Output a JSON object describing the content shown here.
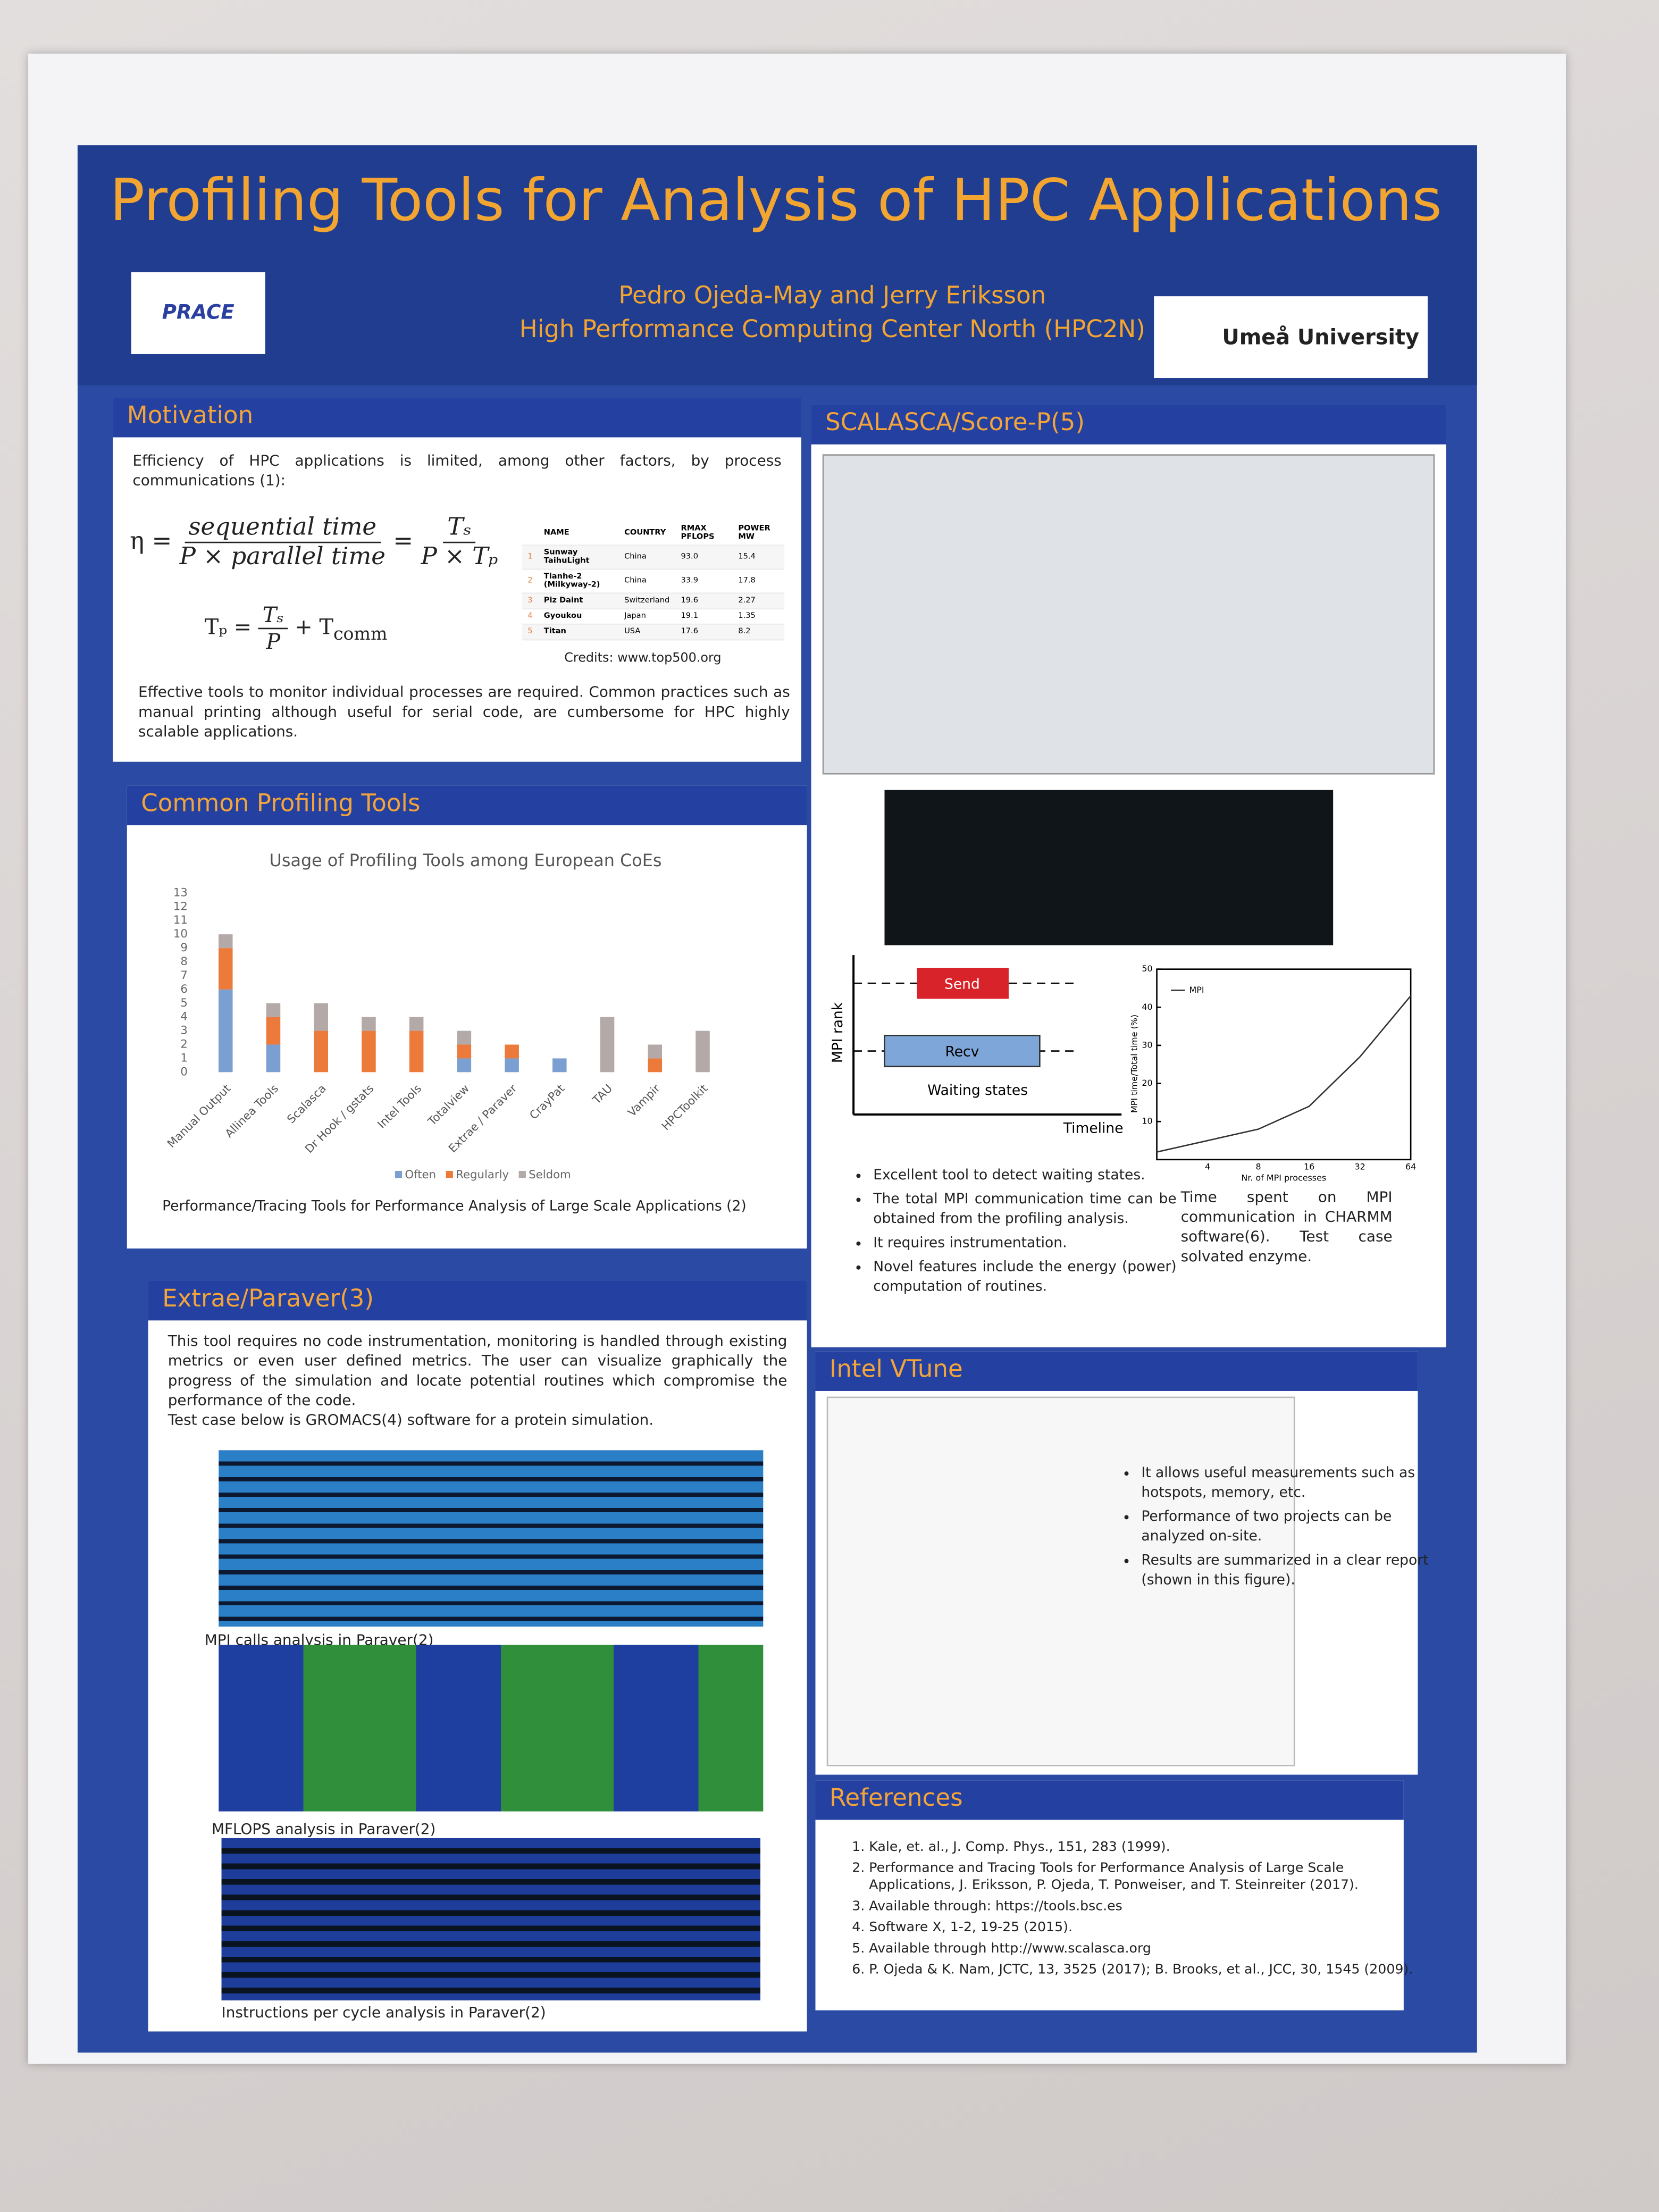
{
  "header": {
    "title": "Profiling Tools for Analysis of HPC Applications",
    "authors": "Pedro Ojeda-May and Jerry Eriksson",
    "affiliation": "High Performance Computing Center North (HPC2N)",
    "logo_left": "PRACE",
    "logo_right": "Umeå University"
  },
  "motivation": {
    "heading": "Motivation",
    "intro": "Efficiency of HPC applications is limited, among other factors, by process communications (1):",
    "equation_1": {
      "lhs": "η =",
      "num_1": "sequential time",
      "den_1": "P × parallel time",
      "eq": "=",
      "num_2": "Tₛ",
      "den_2": "P × Tₚ"
    },
    "equation_2": {
      "lhs": "Tₚ =",
      "num": "Tₛ",
      "den": "P",
      "rhs": "+ T",
      "rhs_sub": "comm"
    },
    "table": {
      "header": [
        "",
        "NAME",
        "COUNTRY",
        "RMAX PFLOPS",
        "POWER MW"
      ],
      "rows": [
        [
          "1",
          "Sunway TaihuLight",
          "China",
          "93.0",
          "15.4"
        ],
        [
          "2",
          "Tianhe-2 (Milkyway-2)",
          "China",
          "33.9",
          "17.8"
        ],
        [
          "3",
          "Piz Daint",
          "Switzerland",
          "19.6",
          "2.27"
        ],
        [
          "4",
          "Gyoukou",
          "Japan",
          "19.1",
          "1.35"
        ],
        [
          "5",
          "Titan",
          "USA",
          "17.6",
          "8.2"
        ]
      ]
    },
    "credits": "Credits: www.top500.org",
    "outro": "Effective tools to monitor individual processes are required. Common practices such as manual printing although useful for serial code, are cumbersome for HPC highly scalable applications."
  },
  "profiling": {
    "heading": "Common Profiling Tools",
    "caption": "Performance/Tracing Tools for Performance Analysis of Large Scale Applications (2)"
  },
  "chart_data": {
    "type": "bar",
    "stacked": true,
    "title": "Usage of Profiling Tools among European CoEs",
    "categories": [
      "Manual Output",
      "Allinea Tools",
      "Scalasca",
      "Dr Hook / gstats",
      "Intel Tools",
      "Totalview",
      "Extrae / Paraver",
      "CrayPat",
      "TAU",
      "Vampir",
      "HPCToolkit"
    ],
    "series": [
      {
        "name": "Often",
        "color": "#7b9fd1",
        "values": [
          6,
          2,
          0,
          0,
          0,
          1,
          1,
          1,
          0,
          0,
          0
        ]
      },
      {
        "name": "Regularly",
        "color": "#ec7a3a",
        "values": [
          3,
          2,
          3,
          3,
          3,
          1,
          1,
          0,
          0,
          1,
          0
        ]
      },
      {
        "name": "Seldom",
        "color": "#b3a9a6",
        "values": [
          1,
          1,
          2,
          1,
          1,
          1,
          0,
          0,
          4,
          1,
          3
        ]
      }
    ],
    "ylim": [
      0,
      13
    ],
    "yticks": [
      0,
      1,
      2,
      3,
      4,
      5,
      6,
      7,
      8,
      9,
      10,
      11,
      12,
      13
    ],
    "legend": "bottom"
  },
  "extrae": {
    "heading": "Extrae/Paraver(3)",
    "text": "This tool requires no code instrumentation, monitoring is handled through existing metrics or even user defined metrics. The user can visualize graphically the progress of the simulation and locate potential routines which compromise the performance of the code.",
    "test_case": "Test case below is GROMACS(4) software  for a protein simulation.",
    "captions": [
      "MPI calls analysis in Paraver(2)",
      "MFLOPS analysis in Paraver(2)",
      "Instructions per cycle analysis in Paraver(2)"
    ]
  },
  "scalasca": {
    "heading": "SCALASCA/Score-P(5)",
    "diagram": {
      "y_label": "MPI rank",
      "send": "Send",
      "recv": "Recv",
      "waiting": "Waiting states",
      "x_label": "Timeline"
    },
    "plot": {
      "y_label": "MPI time/Total time (%)",
      "x_label": "Nr. of MPI processes",
      "ylim": [
        0,
        50
      ],
      "yticks": [
        10,
        20,
        30,
        40,
        50
      ],
      "x_labels": [
        null,
        "4",
        "8",
        "16",
        "32",
        "64"
      ],
      "series": [
        {
          "name": "MPI",
          "color": "#333333",
          "values": [
            2,
            5,
            8,
            14,
            27,
            43
          ]
        }
      ]
    },
    "bullets": [
      "Excellent tool to detect waiting states.",
      "The total MPI communication time can be obtained from the profiling analysis.",
      "It requires instrumentation.",
      "Novel features include the energy (power) computation of routines."
    ],
    "note": "Time spent on MPI communication in CHARMM software(6). Test case solvated enzyme."
  },
  "vtune": {
    "heading": "Intel VTune",
    "bullets": [
      "It allows useful measurements such as hotspots, memory, etc.",
      "Performance of two projects can be analyzed on-site.",
      "Results are summarized in a clear report (shown in this figure)."
    ]
  },
  "references": {
    "heading": "References",
    "items": [
      "Kale, et. al., J. Comp. Phys., 151, 283 (1999).",
      "Performance and Tracing Tools for Performance Analysis of Large Scale Applications, J. Eriksson, P. Ojeda, T. Ponweiser, and T. Steinreiter (2017).",
      "Available through: https://tools.bsc.es",
      "Software X, 1-2, 19-25 (2015).",
      "Available through http://www.scalasca.org",
      "P. Ojeda & K. Nam, JCTC, 13, 3525 (2017); B. Brooks, et al., JCC, 30, 1545 (2009)."
    ]
  }
}
